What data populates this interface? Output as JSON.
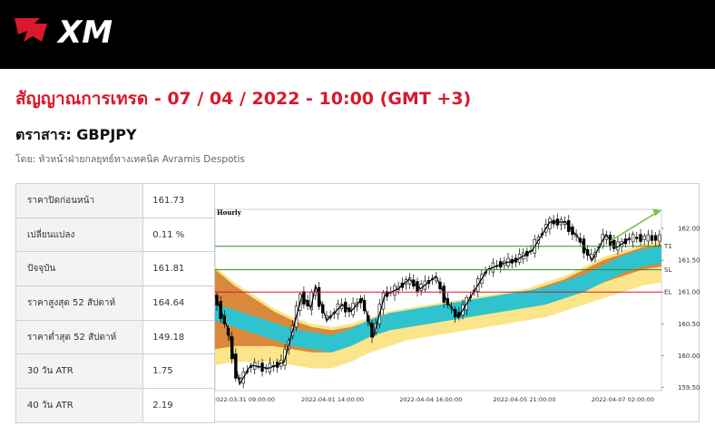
{
  "brand": {
    "logo_text": "XM",
    "accent": "#d7192b"
  },
  "signal": {
    "title": "สัญญาณการเทรด - 07 / 04 / 2022 - 10:00 (GMT +3)",
    "instrument": "ตราสาร: GBPJPY",
    "author": "โดย: หัวหน้าฝ่ายกลยุทธ์ทางเทคนิค Avramis Despotis"
  },
  "stats": [
    {
      "label": "ราคาปิดก่อนหน้า",
      "value": "161.73"
    },
    {
      "label": "เปลี่ยนแปลง",
      "value": "0.11 %"
    },
    {
      "label": "ปัจจุบัน",
      "value": "161.81"
    },
    {
      "label": "ราคาสูงสุด 52 สัปดาห์",
      "value": "164.64"
    },
    {
      "label": "ราคาต่ำสุด 52 สัปดาห์",
      "value": "149.18"
    },
    {
      "label": "30 วัน ATR",
      "value": "1.75"
    },
    {
      "label": "40 วัน ATR",
      "value": "2.19"
    }
  ],
  "chart_data": {
    "type": "line",
    "timeframe_label": "Hourly",
    "x_ticks": [
      "2022-03-31 09:00:00",
      "2022-04-01 14:00:00",
      "2022-04-04 16:00:00",
      "2022-04-05 21:00:00",
      "2022-04-07 02:00:00"
    ],
    "y_ticks": [
      "162.00",
      "161.50",
      "161.00",
      "160.50",
      "160.00",
      "159.50"
    ],
    "ylim": [
      159.45,
      162.3
    ],
    "levels": [
      {
        "name": "T1",
        "value": 161.72,
        "color": "#2e8b2e"
      },
      {
        "name": "SL",
        "value": 161.35,
        "color": "#2e8b2e"
      },
      {
        "name": "EL",
        "value": 161.0,
        "color": "#d7192b"
      }
    ],
    "zigzag": [
      [
        0,
        160.95
      ],
      [
        0.03,
        160.4
      ],
      [
        0.055,
        159.55
      ],
      [
        0.08,
        159.85
      ],
      [
        0.12,
        159.8
      ],
      [
        0.155,
        159.9
      ],
      [
        0.195,
        160.95
      ],
      [
        0.215,
        160.75
      ],
      [
        0.225,
        161.1
      ],
      [
        0.25,
        160.55
      ],
      [
        0.285,
        160.8
      ],
      [
        0.305,
        160.7
      ],
      [
        0.33,
        160.9
      ],
      [
        0.355,
        160.3
      ],
      [
        0.38,
        160.95
      ],
      [
        0.41,
        161.05
      ],
      [
        0.435,
        161.2
      ],
      [
        0.46,
        161.05
      ],
      [
        0.495,
        161.25
      ],
      [
        0.52,
        160.85
      ],
      [
        0.545,
        160.6
      ],
      [
        0.575,
        160.95
      ],
      [
        0.61,
        161.35
      ],
      [
        0.645,
        161.45
      ],
      [
        0.675,
        161.5
      ],
      [
        0.71,
        161.65
      ],
      [
        0.75,
        162.1
      ],
      [
        0.785,
        162.1
      ],
      [
        0.82,
        161.8
      ],
      [
        0.845,
        161.5
      ],
      [
        0.875,
        161.9
      ],
      [
        0.9,
        161.7
      ],
      [
        0.93,
        161.85
      ]
    ],
    "projection": {
      "from": [
        0.885,
        161.8
      ],
      "to": [
        1.0,
        162.28
      ],
      "color": "#7cc242"
    },
    "series": [
      {
        "values": [
          160.7,
          160.6,
          160.5,
          160.4,
          160.3,
          160.25,
          160.2,
          160.3,
          160.45,
          160.55,
          160.6,
          160.65,
          160.7,
          160.75,
          160.8,
          160.85,
          160.9,
          160.95,
          161.05,
          161.15,
          161.3,
          161.45,
          161.55,
          161.6
        ]
      },
      {
        "values": [
          161.35,
          161.1,
          160.9,
          160.7,
          160.55,
          160.45,
          160.4,
          160.45,
          160.55,
          160.65,
          160.7,
          160.75,
          160.8,
          160.85,
          160.9,
          160.95,
          161.0,
          161.1,
          161.2,
          161.35,
          161.5,
          161.6,
          161.7,
          161.75
        ]
      },
      {
        "values": [
          160.0,
          160.05,
          160.05,
          160.05,
          160.0,
          159.95,
          159.95,
          160.05,
          160.2,
          160.3,
          160.4,
          160.45,
          160.5,
          160.55,
          160.6,
          160.65,
          160.7,
          160.75,
          160.85,
          160.95,
          161.05,
          161.15,
          161.25,
          161.3
        ]
      }
    ]
  }
}
